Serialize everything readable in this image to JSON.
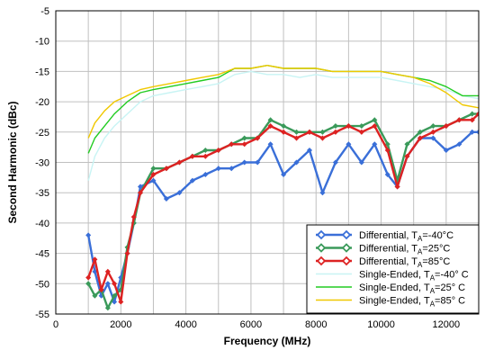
{
  "chart_data": {
    "type": "line",
    "xlabel": "Frequency (MHz)",
    "ylabel": "Second Harmonic (dBc)",
    "xlim": [
      0,
      13000
    ],
    "ylim": [
      -55,
      -5
    ],
    "x_ticks": [
      "0",
      "2000",
      "4000",
      "6000",
      "8000",
      "10000",
      "12000"
    ],
    "y_ticks": [
      "-5",
      "-10",
      "-15",
      "-20",
      "-25",
      "-30",
      "-35",
      "-40",
      "-45",
      "-50",
      "-55"
    ],
    "grid": true,
    "legend_position": "bottom-right",
    "series": [
      {
        "name": "Differential, TA=-40°C",
        "legend_main": "Differential, T",
        "legend_sub": "A",
        "legend_rest": "=-40°C",
        "color": "#3a6fd8",
        "marker": "diamond",
        "x": [
          1000,
          1200,
          1400,
          1600,
          1800,
          2000,
          2200,
          2400,
          2600,
          3000,
          3400,
          3800,
          4200,
          4600,
          5000,
          5400,
          5800,
          6200,
          6600,
          7000,
          7400,
          7800,
          8200,
          8600,
          9000,
          9400,
          9800,
          10200,
          10500,
          10800,
          11200,
          11600,
          12000,
          12400,
          12800,
          13000
        ],
        "y": [
          -42,
          -48,
          -52,
          -50,
          -53,
          -49,
          -45,
          -40,
          -34,
          -33,
          -36,
          -35,
          -33,
          -32,
          -31,
          -31,
          -30,
          -30,
          -27,
          -32,
          -30,
          -28,
          -35,
          -30,
          -27,
          -30,
          -27,
          -32,
          -34,
          -29,
          -26,
          -26,
          -28,
          -27,
          -25,
          -25
        ]
      },
      {
        "name": "Differential, TA=25°C",
        "legend_main": "Differential, T",
        "legend_sub": "A",
        "legend_rest": "=25°C",
        "color": "#3a9a5a",
        "marker": "diamond",
        "x": [
          1000,
          1200,
          1400,
          1600,
          1800,
          2000,
          2200,
          2400,
          2600,
          3000,
          3400,
          3800,
          4200,
          4600,
          5000,
          5400,
          5800,
          6200,
          6600,
          7000,
          7400,
          7800,
          8200,
          8600,
          9000,
          9400,
          9800,
          10200,
          10500,
          10800,
          11200,
          11600,
          12000,
          12400,
          12800,
          13000
        ],
        "y": [
          -50,
          -52,
          -51,
          -54,
          -52,
          -51,
          -44,
          -40,
          -35,
          -31,
          -31,
          -30,
          -29,
          -28,
          -28,
          -27,
          -26,
          -26,
          -23,
          -24,
          -25,
          -25,
          -25,
          -24,
          -24,
          -24,
          -23,
          -27,
          -33,
          -27,
          -25,
          -24,
          -24,
          -23,
          -22,
          -22
        ]
      },
      {
        "name": "Differential, TA=85°C",
        "legend_main": "Differential, T",
        "legend_sub": "A",
        "legend_rest": "=85°C",
        "color": "#dd2222",
        "marker": "diamond",
        "x": [
          1000,
          1200,
          1400,
          1600,
          1800,
          2000,
          2200,
          2400,
          2600,
          3000,
          3400,
          3800,
          4200,
          4600,
          5000,
          5400,
          5800,
          6200,
          6600,
          7000,
          7400,
          7800,
          8200,
          8600,
          9000,
          9400,
          9800,
          10200,
          10500,
          10800,
          11200,
          11600,
          12000,
          12400,
          12800,
          13000
        ],
        "y": [
          -49,
          -46,
          -51,
          -48,
          -50,
          -53,
          -45,
          -39,
          -35,
          -32,
          -31,
          -30,
          -29,
          -29,
          -28,
          -27,
          -27,
          -26,
          -24,
          -25,
          -26,
          -25,
          -26,
          -25,
          -24,
          -25,
          -24,
          -28,
          -34,
          -29,
          -26,
          -25,
          -24,
          -23,
          -23,
          -22
        ]
      },
      {
        "name": "Single-Ended, TA=-40° C",
        "legend_main": "Single-Ended, T",
        "legend_sub": "A",
        "legend_rest": "=-40° C",
        "color": "#c8f4f4",
        "marker": "none",
        "x": [
          1000,
          1200,
          1500,
          1800,
          2200,
          2600,
          3000,
          3500,
          4000,
          4500,
          5000,
          5500,
          6000,
          6500,
          7000,
          7500,
          8000,
          8500,
          9000,
          9500,
          10000,
          10500,
          11000,
          11500,
          12000,
          12500,
          13000
        ],
        "y": [
          -33,
          -29,
          -26,
          -24,
          -22,
          -20,
          -19,
          -18.5,
          -18,
          -17.5,
          -17,
          -15.5,
          -15,
          -15.5,
          -15.5,
          -16,
          -15.5,
          -16,
          -16,
          -16,
          -16,
          -16.5,
          -17,
          -17.5,
          -18,
          -19,
          -19.5
        ]
      },
      {
        "name": "Single-Ended, TA=25° C",
        "legend_main": "Single-Ended, T",
        "legend_sub": "A",
        "legend_rest": "=25° C",
        "color": "#22cc22",
        "marker": "none",
        "x": [
          1000,
          1200,
          1500,
          1800,
          2200,
          2600,
          3000,
          3500,
          4000,
          4500,
          5000,
          5500,
          6000,
          6500,
          7000,
          7500,
          8000,
          8500,
          9000,
          9500,
          10000,
          10500,
          11000,
          11500,
          12000,
          12500,
          13000
        ],
        "y": [
          -28.5,
          -26,
          -24,
          -22,
          -20,
          -18.5,
          -18,
          -17.5,
          -17,
          -16.5,
          -16,
          -14.5,
          -14.5,
          -14,
          -14.5,
          -14.5,
          -14.5,
          -15,
          -15,
          -15,
          -15,
          -15.5,
          -16,
          -16.5,
          -17.5,
          -19,
          -19
        ]
      },
      {
        "name": "Single-Ended, TA=85° C",
        "legend_main": "Single-Ended, T",
        "legend_sub": "A",
        "legend_rest": "=85° C",
        "color": "#f0c800",
        "marker": "none",
        "x": [
          1000,
          1200,
          1500,
          1800,
          2200,
          2600,
          3000,
          3500,
          4000,
          4500,
          5000,
          5500,
          6000,
          6500,
          7000,
          7500,
          8000,
          8500,
          9000,
          9500,
          10000,
          10500,
          11000,
          11500,
          12000,
          12500,
          13000
        ],
        "y": [
          -26,
          -23.5,
          -21.5,
          -20,
          -19,
          -18,
          -17.5,
          -17,
          -16.5,
          -16,
          -15.5,
          -14.5,
          -14.5,
          -14,
          -14.5,
          -14.5,
          -14.5,
          -15,
          -15,
          -15,
          -15,
          -15.5,
          -16,
          -17,
          -18.5,
          -20.5,
          -21
        ]
      }
    ]
  }
}
